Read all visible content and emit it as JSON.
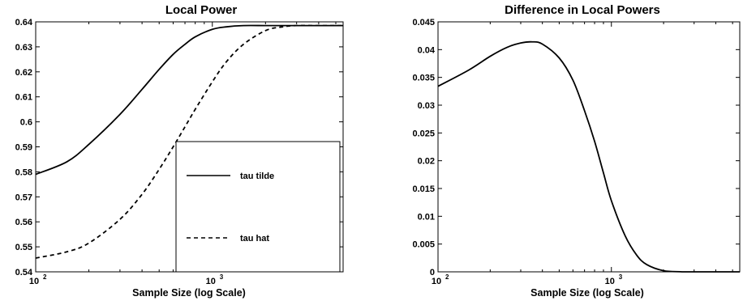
{
  "chart_data": [
    {
      "type": "line",
      "title": "Local Power",
      "xlabel": "Sample Size (log Scale)",
      "ylabel": "",
      "xscale": "log",
      "xlim": [
        100,
        5500
      ],
      "ylim": [
        0.54,
        0.64
      ],
      "yticks": [
        "0.54",
        "0.55",
        "0.56",
        "0.57",
        "0.58",
        "0.59",
        "0.6",
        "0.61",
        "0.62",
        "0.63",
        "0.64"
      ],
      "xticks": [
        {
          "base": "10",
          "exp": "2"
        },
        {
          "base": "10",
          "exp": "3"
        }
      ],
      "legend": {
        "placement": "lower-right",
        "box": true
      },
      "series": [
        {
          "name": "tau tilde",
          "style": "solid",
          "x": [
            100,
            150,
            200,
            300,
            400,
            500,
            600,
            700,
            800,
            1000,
            1200,
            1500,
            2000,
            2500,
            3000,
            4000,
            5500
          ],
          "y": [
            0.579,
            0.584,
            0.591,
            0.603,
            0.613,
            0.621,
            0.627,
            0.631,
            0.634,
            0.637,
            0.638,
            0.6385,
            0.6385,
            0.6385,
            0.6385,
            0.6385,
            0.6385
          ]
        },
        {
          "name": "tau hat",
          "style": "dashed",
          "x": [
            100,
            150,
            200,
            300,
            400,
            500,
            600,
            700,
            800,
            1000,
            1200,
            1500,
            2000,
            2500,
            3000,
            4000,
            5500
          ],
          "y": [
            0.5455,
            0.548,
            0.5515,
            0.561,
            0.571,
            0.581,
            0.59,
            0.598,
            0.605,
            0.616,
            0.624,
            0.631,
            0.6365,
            0.638,
            0.6385,
            0.6385,
            0.6385
          ]
        }
      ]
    },
    {
      "type": "line",
      "title": "Difference in Local Powers",
      "xlabel": "Sample Size (log Scale)",
      "ylabel": "",
      "xscale": "log",
      "xlim": [
        100,
        5500
      ],
      "ylim": [
        0,
        0.045
      ],
      "yticks": [
        "0",
        "0.005",
        "0.01",
        "0.015",
        "0.02",
        "0.025",
        "0.03",
        "0.035",
        "0.04",
        "0.045"
      ],
      "xticks": [
        {
          "base": "10",
          "exp": "2"
        },
        {
          "base": "10",
          "exp": "3"
        }
      ],
      "series": [
        {
          "style": "solid",
          "x": [
            100,
            150,
            200,
            250,
            300,
            350,
            400,
            500,
            600,
            700,
            800,
            900,
            1000,
            1200,
            1400,
            1600,
            2000,
            2500,
            3000,
            4000,
            5500
          ],
          "y": [
            0.0334,
            0.0363,
            0.0388,
            0.0404,
            0.0412,
            0.0414,
            0.041,
            0.0385,
            0.0345,
            0.029,
            0.0235,
            0.0178,
            0.0128,
            0.0065,
            0.003,
            0.0013,
            0.0002,
            2e-05,
            0,
            0,
            0
          ]
        }
      ]
    }
  ]
}
